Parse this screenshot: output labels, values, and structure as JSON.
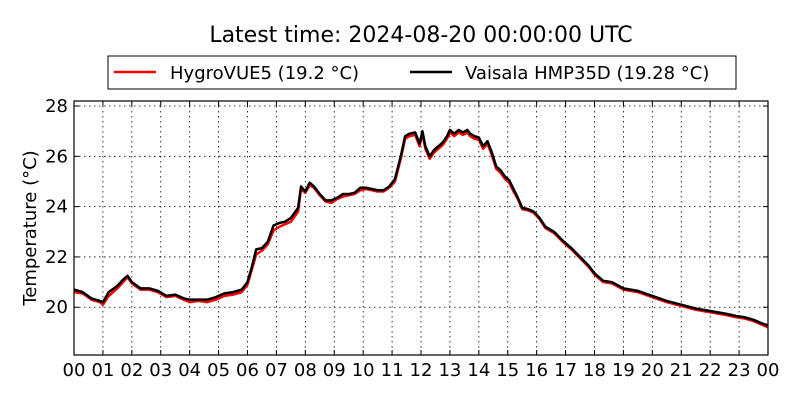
{
  "chart_data": {
    "type": "line",
    "title": "Latest time: 2024-08-20 00:00:00 UTC",
    "xlabel": "",
    "ylabel": "Temperature (°C)",
    "xlim": [
      0,
      24
    ],
    "ylim": [
      18.1,
      28.2
    ],
    "grid": true,
    "legend_position": "top",
    "x_ticks": [
      "00",
      "01",
      "02",
      "03",
      "04",
      "05",
      "06",
      "07",
      "08",
      "09",
      "10",
      "11",
      "12",
      "13",
      "14",
      "15",
      "16",
      "17",
      "18",
      "19",
      "20",
      "21",
      "22",
      "23",
      "00"
    ],
    "y_ticks": [
      20,
      22,
      24,
      26,
      28
    ],
    "series": [
      {
        "name": "HygroVUE5 (19.2 °C)",
        "color": "#ff0000",
        "x": [
          0,
          0.3,
          0.6,
          0.9,
          1.0,
          1.2,
          1.5,
          1.7,
          1.85,
          2.0,
          2.3,
          2.6,
          2.9,
          3.2,
          3.5,
          3.8,
          4.0,
          4.3,
          4.6,
          4.9,
          5.2,
          5.5,
          5.8,
          6.0,
          6.15,
          6.3,
          6.5,
          6.7,
          6.9,
          7.1,
          7.3,
          7.5,
          7.75,
          7.85,
          8.0,
          8.15,
          8.3,
          8.5,
          8.7,
          8.9,
          9.1,
          9.3,
          9.5,
          9.7,
          9.9,
          10.1,
          10.3,
          10.5,
          10.7,
          10.9,
          11.1,
          11.3,
          11.45,
          11.6,
          11.8,
          11.95,
          12.05,
          12.15,
          12.3,
          12.45,
          12.6,
          12.75,
          12.9,
          13.0,
          13.15,
          13.3,
          13.45,
          13.6,
          13.7,
          13.85,
          14.0,
          14.15,
          14.3,
          14.45,
          14.6,
          14.75,
          14.9,
          15.05,
          15.2,
          15.35,
          15.5,
          15.7,
          15.9,
          16.1,
          16.3,
          16.6,
          16.9,
          17.2,
          17.5,
          17.8,
          18.0,
          18.3,
          18.6,
          19.0,
          19.5,
          20.0,
          20.5,
          21.0,
          21.5,
          22.0,
          22.5,
          22.9,
          23.2,
          23.5,
          23.8,
          24.0
        ],
        "y": [
          20.6,
          20.55,
          20.3,
          20.2,
          20.1,
          20.45,
          20.75,
          21.0,
          21.2,
          20.95,
          20.7,
          20.7,
          20.6,
          20.4,
          20.45,
          20.3,
          20.2,
          20.25,
          20.2,
          20.3,
          20.45,
          20.5,
          20.6,
          20.9,
          21.5,
          22.1,
          22.25,
          22.5,
          23.05,
          23.2,
          23.3,
          23.4,
          23.8,
          24.7,
          24.55,
          24.85,
          24.75,
          24.45,
          24.2,
          24.15,
          24.3,
          24.4,
          24.45,
          24.5,
          24.65,
          24.7,
          24.65,
          24.6,
          24.6,
          24.75,
          25.0,
          25.9,
          26.7,
          26.8,
          26.85,
          26.4,
          26.9,
          26.3,
          25.9,
          26.15,
          26.3,
          26.45,
          26.7,
          26.95,
          26.8,
          26.95,
          26.85,
          26.95,
          26.8,
          26.7,
          26.65,
          26.3,
          26.5,
          26.05,
          25.5,
          25.35,
          25.1,
          24.95,
          24.6,
          24.3,
          23.9,
          23.85,
          23.75,
          23.5,
          23.15,
          22.95,
          22.6,
          22.3,
          21.95,
          21.6,
          21.3,
          21.0,
          20.95,
          20.7,
          20.6,
          20.4,
          20.2,
          20.05,
          19.9,
          19.8,
          19.7,
          19.6,
          19.55,
          19.45,
          19.3,
          19.2
        ]
      },
      {
        "name": "Vaisala HMP35D (19.28 °C)",
        "color": "#000000",
        "x": [
          0,
          0.3,
          0.6,
          0.9,
          1.0,
          1.2,
          1.5,
          1.7,
          1.85,
          2.0,
          2.3,
          2.6,
          2.9,
          3.2,
          3.5,
          3.8,
          4.0,
          4.3,
          4.6,
          4.9,
          5.2,
          5.5,
          5.8,
          6.0,
          6.15,
          6.3,
          6.5,
          6.7,
          6.9,
          7.1,
          7.3,
          7.5,
          7.75,
          7.85,
          8.0,
          8.15,
          8.3,
          8.5,
          8.7,
          8.9,
          9.1,
          9.3,
          9.5,
          9.7,
          9.9,
          10.1,
          10.3,
          10.5,
          10.7,
          10.9,
          11.1,
          11.3,
          11.45,
          11.6,
          11.8,
          11.95,
          12.05,
          12.15,
          12.3,
          12.45,
          12.6,
          12.75,
          12.9,
          13.0,
          13.15,
          13.3,
          13.45,
          13.6,
          13.7,
          13.85,
          14.0,
          14.15,
          14.3,
          14.45,
          14.6,
          14.75,
          14.9,
          15.05,
          15.2,
          15.35,
          15.5,
          15.7,
          15.9,
          16.1,
          16.3,
          16.6,
          16.9,
          17.2,
          17.5,
          17.8,
          18.0,
          18.3,
          18.6,
          19.0,
          19.5,
          20.0,
          20.5,
          21.0,
          21.5,
          22.0,
          22.5,
          22.9,
          23.2,
          23.5,
          23.8,
          24.0
        ],
        "y": [
          20.7,
          20.6,
          20.35,
          20.25,
          20.2,
          20.6,
          20.85,
          21.1,
          21.25,
          21.0,
          20.75,
          20.75,
          20.65,
          20.45,
          20.5,
          20.35,
          20.3,
          20.3,
          20.3,
          20.4,
          20.55,
          20.6,
          20.7,
          21.0,
          21.6,
          22.3,
          22.35,
          22.6,
          23.25,
          23.35,
          23.4,
          23.55,
          23.95,
          24.8,
          24.6,
          24.95,
          24.8,
          24.5,
          24.25,
          24.25,
          24.35,
          24.5,
          24.5,
          24.55,
          24.75,
          24.75,
          24.7,
          24.65,
          24.65,
          24.8,
          25.1,
          26.0,
          26.8,
          26.9,
          26.95,
          26.5,
          27.0,
          26.4,
          26.0,
          26.25,
          26.4,
          26.55,
          26.8,
          27.05,
          26.9,
          27.05,
          26.95,
          27.05,
          26.9,
          26.8,
          26.75,
          26.4,
          26.6,
          26.15,
          25.6,
          25.45,
          25.2,
          25.05,
          24.7,
          24.35,
          23.95,
          23.9,
          23.8,
          23.55,
          23.2,
          23.0,
          22.65,
          22.35,
          22.0,
          21.65,
          21.35,
          21.05,
          21.0,
          20.75,
          20.65,
          20.45,
          20.25,
          20.1,
          19.95,
          19.85,
          19.75,
          19.65,
          19.6,
          19.5,
          19.35,
          19.28
        ]
      }
    ]
  }
}
